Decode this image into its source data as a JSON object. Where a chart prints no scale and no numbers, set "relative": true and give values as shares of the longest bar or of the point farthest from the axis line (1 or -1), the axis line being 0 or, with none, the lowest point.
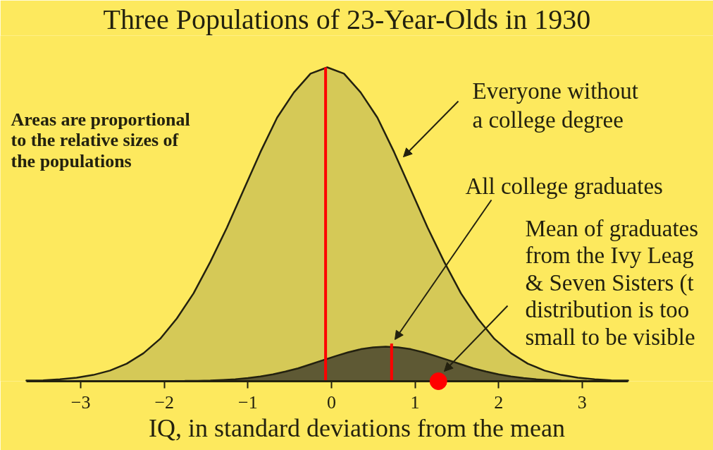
{
  "chart_data": {
    "type": "area",
    "title": "Three Populations of 23-Year-Olds in 1930",
    "xlabel": "IQ, in standard deviations from the mean",
    "relative": true,
    "xlim": [
      -3.65,
      3.55
    ],
    "xticks": [
      -3,
      -2,
      -1,
      0,
      1,
      2,
      3
    ],
    "series": [
      {
        "color": "#d5c957",
        "x": [
          -3.65,
          -3.45,
          -3.25,
          -3.05,
          -2.85,
          -2.65,
          -2.45,
          -2.25,
          -2.05,
          -1.85,
          -1.65,
          -1.45,
          -1.25,
          -1.05,
          -0.85,
          -0.65,
          -0.45,
          -0.25,
          -0.05,
          0.15,
          0.35,
          0.55,
          0.75,
          0.95,
          1.15,
          1.35,
          1.55,
          1.75,
          1.95,
          2.15,
          2.35,
          2.55,
          2.75,
          2.95,
          3.15,
          3.35,
          3.55
        ],
        "values": [
          0.002,
          0.003,
          0.006,
          0.011,
          0.02,
          0.034,
          0.056,
          0.089,
          0.135,
          0.2,
          0.28,
          0.38,
          0.49,
          0.61,
          0.73,
          0.84,
          0.92,
          0.98,
          1.0,
          0.98,
          0.92,
          0.84,
          0.73,
          0.61,
          0.49,
          0.38,
          0.28,
          0.2,
          0.135,
          0.089,
          0.056,
          0.034,
          0.02,
          0.011,
          0.006,
          0.003,
          0.002
        ]
      },
      {
        "color": "#5e5934",
        "x": [
          -1.75,
          -1.6,
          -1.45,
          -1.3,
          -1.15,
          -1.0,
          -0.85,
          -0.7,
          -0.55,
          -0.4,
          -0.25,
          -0.1,
          0.05,
          0.2,
          0.35,
          0.5,
          0.65,
          0.8,
          0.95,
          1.1,
          1.25,
          1.4,
          1.55,
          1.7,
          1.85,
          2.0,
          2.15,
          2.3,
          2.45,
          2.6,
          2.75,
          2.9,
          3.05
        ],
        "values": [
          0.001,
          0.001,
          0.002,
          0.004,
          0.006,
          0.01,
          0.015,
          0.022,
          0.031,
          0.041,
          0.054,
          0.067,
          0.08,
          0.092,
          0.102,
          0.108,
          0.11,
          0.108,
          0.102,
          0.092,
          0.08,
          0.067,
          0.054,
          0.041,
          0.031,
          0.022,
          0.015,
          0.01,
          0.006,
          0.004,
          0.002,
          0.001,
          0.001
        ]
      },
      {
        "type": "line",
        "color": "#ff0000",
        "x": [
          -0.07,
          -0.07
        ],
        "values": [
          0,
          1.0
        ]
      },
      {
        "type": "line",
        "color": "#ff0000",
        "x": [
          0.72,
          0.72
        ],
        "values": [
          0,
          0.12
        ]
      },
      {
        "type": "scatter",
        "color": "#ff0000",
        "marker": "circle",
        "x": [
          1.28
        ],
        "values": [
          0
        ]
      }
    ],
    "annotations": [
      "Areas are proportional\nto the relative sizes of\nthe populations",
      "Everyone without\na college degree",
      "All college graduates",
      "Mean of graduates\nfrom the Ivy Leag\n& Seven Sisters (t\ndistribution is too\nsmall to be visible"
    ]
  }
}
